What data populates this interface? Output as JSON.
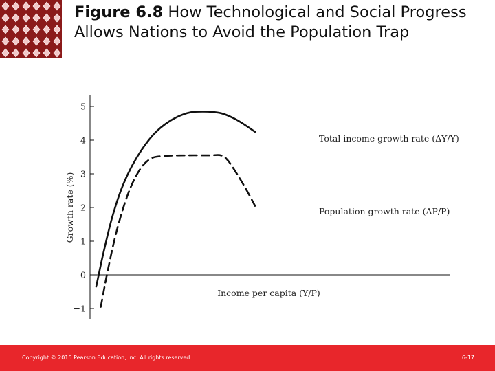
{
  "header": {
    "figure_label": "Figure 6.8",
    "title_text": "How Technological and Social Progress Allows Nations to Avoid the Population Trap"
  },
  "colors": {
    "accent": "#e8262b",
    "logo_dark": "#8b1a1a",
    "logo_light": "#f3c9c9",
    "curve": "#111111"
  },
  "logo": {
    "icon": "diamond-pattern-icon"
  },
  "chart_data": {
    "type": "line",
    "xlabel": "Income per capita (Y/P)",
    "ylabel": "Growth rate (%)",
    "ylim": [
      -1,
      5
    ],
    "xlim": [
      0,
      100
    ],
    "y_ticks": [
      "−1",
      "0",
      "1",
      "2",
      "3",
      "4",
      "5"
    ],
    "grid": false,
    "series": [
      {
        "name": "Total income growth rate (ΔY/Y)",
        "style": "solid",
        "x": [
          0,
          3,
          7,
          12,
          18,
          25,
          32,
          40,
          47,
          55,
          62,
          70
        ],
        "y": [
          -0.35,
          0.6,
          1.7,
          2.7,
          3.5,
          4.15,
          4.55,
          4.8,
          4.85,
          4.8,
          4.6,
          4.25
        ]
      },
      {
        "name": "Population growth rate (ΔP/P)",
        "style": "dashed",
        "x": [
          2,
          5,
          9,
          14,
          19,
          24,
          30,
          40,
          50,
          55,
          58,
          62,
          66,
          70
        ],
        "y": [
          -0.95,
          0.1,
          1.3,
          2.4,
          3.1,
          3.45,
          3.53,
          3.55,
          3.55,
          3.55,
          3.4,
          3.0,
          2.55,
          2.05
        ]
      }
    ]
  },
  "footer": {
    "copyright": "Copyright © 2015 Pearson Education, Inc. All rights reserved.",
    "page_number": "6-17"
  }
}
